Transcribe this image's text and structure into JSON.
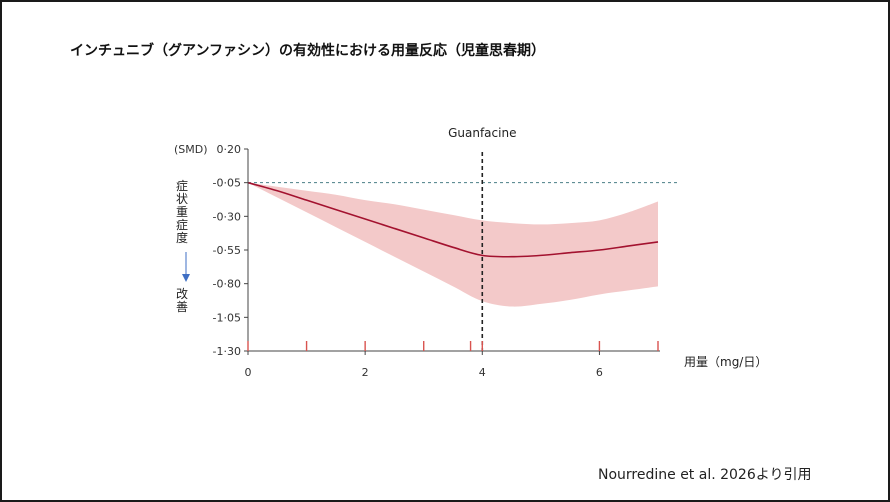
{
  "title": "インチュニブ（グアンファシン）の有効性における用量反応（児童思春期）",
  "citation": "Nourredine et al. 2026より引用",
  "chart_data": {
    "type": "line",
    "y_unit": "(SMD)",
    "ylabel_chars": [
      "症",
      "状",
      "重",
      "症",
      "度"
    ],
    "ylabel_arrow_to": "改善",
    "ylabel_chars_bottom": [
      "改",
      "善"
    ],
    "xlabel": "用量（mg/日）",
    "ylim": [
      -1.3,
      0.2
    ],
    "xlim": [
      0,
      7
    ],
    "yticks": [
      "0·20",
      "-0·05",
      "-0·30",
      "-0·55",
      "-0·80",
      "-1·05",
      "-1·30"
    ],
    "ytick_values": [
      0.2,
      -0.05,
      -0.3,
      -0.55,
      -0.8,
      -1.05,
      -1.3
    ],
    "xticks": [
      "0",
      "2",
      "4",
      "6"
    ],
    "xtick_values": [
      0,
      2,
      4,
      6
    ],
    "reference_line": {
      "y": -0.05,
      "style": "dashed"
    },
    "annotation": {
      "label": "Guanfacine",
      "x": 4,
      "style": "dashed-vertical"
    },
    "rug_x": [
      0,
      1,
      2,
      3,
      3.8,
      4,
      6,
      7
    ],
    "series": [
      {
        "x": [
          0,
          0.5,
          1,
          1.5,
          2,
          2.5,
          3,
          3.5,
          4,
          4.5,
          5,
          5.5,
          6,
          6.5,
          7
        ],
        "values": [
          -0.05,
          -0.11,
          -0.18,
          -0.25,
          -0.32,
          -0.39,
          -0.46,
          -0.53,
          -0.59,
          -0.6,
          -0.59,
          -0.57,
          -0.55,
          -0.52,
          -0.49
        ],
        "lower": [
          -0.05,
          -0.16,
          -0.27,
          -0.38,
          -0.49,
          -0.6,
          -0.71,
          -0.82,
          -0.93,
          -0.97,
          -0.95,
          -0.92,
          -0.88,
          -0.85,
          -0.82
        ],
        "upper": [
          -0.05,
          -0.08,
          -0.11,
          -0.14,
          -0.18,
          -0.21,
          -0.25,
          -0.29,
          -0.33,
          -0.35,
          -0.36,
          -0.35,
          -0.33,
          -0.27,
          -0.19
        ],
        "color": "#a3122f",
        "band_color": "#f3c9c9"
      }
    ],
    "colors": {
      "axis": "#444444",
      "reference": "#4a7f86",
      "annotation": "#222222",
      "rug": "#d9534f",
      "arrow": "#3f6fc4"
    }
  }
}
